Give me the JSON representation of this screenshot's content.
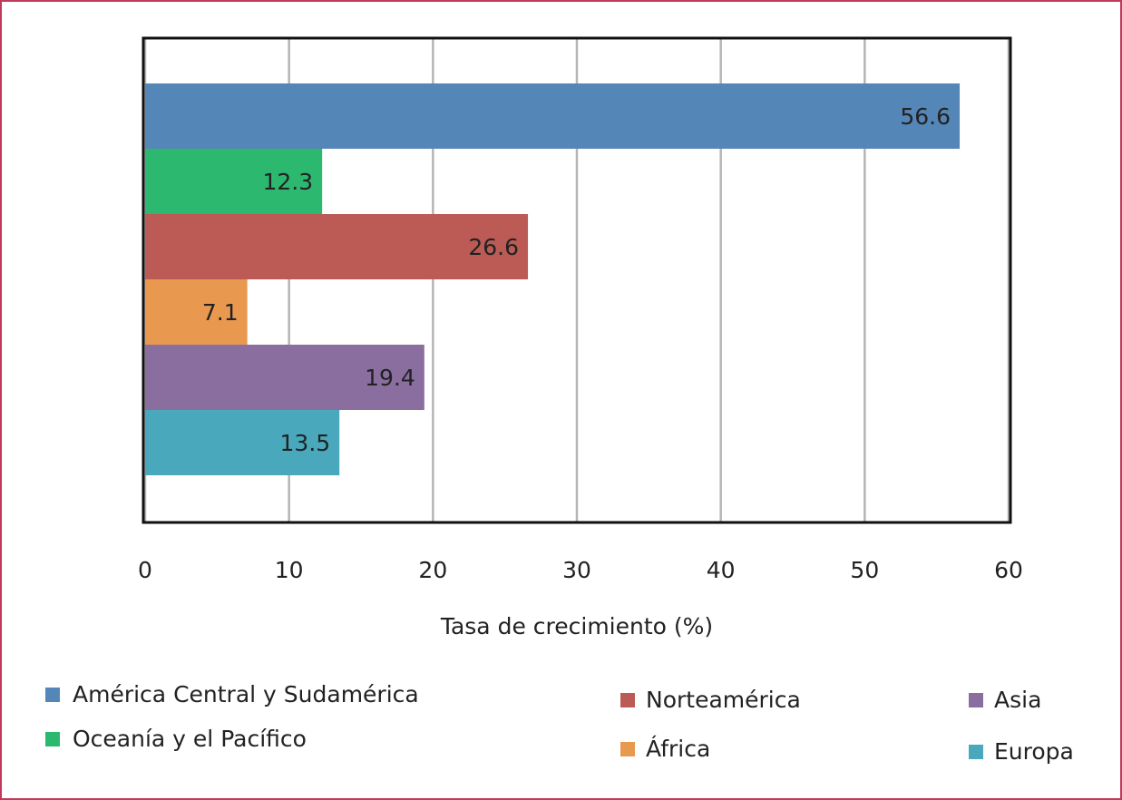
{
  "chart_data": {
    "type": "bar",
    "orientation": "horizontal",
    "xlabel": "Tasa de crecimiento (%)",
    "xlim": [
      0,
      60
    ],
    "xticks": [
      0,
      10,
      20,
      30,
      40,
      50,
      60
    ],
    "grid": true,
    "legend": "bottom",
    "series": [
      {
        "name": "América Central y Sudamérica",
        "color": "#5586b8",
        "values": [
          56.6
        ]
      },
      {
        "name": "Oceanía y el Pacífico",
        "color": "#2db870",
        "values": [
          12.3
        ]
      },
      {
        "name": "Norteamérica",
        "color": "#bc5b55",
        "values": [
          26.6
        ]
      },
      {
        "name": "África",
        "color": "#e8994f",
        "values": [
          7.1
        ]
      },
      {
        "name": "Asia",
        "color": "#8a6ea0",
        "values": [
          19.4
        ]
      },
      {
        "name": "Europa",
        "color": "#4aa8bc",
        "values": [
          13.5
        ]
      }
    ]
  }
}
